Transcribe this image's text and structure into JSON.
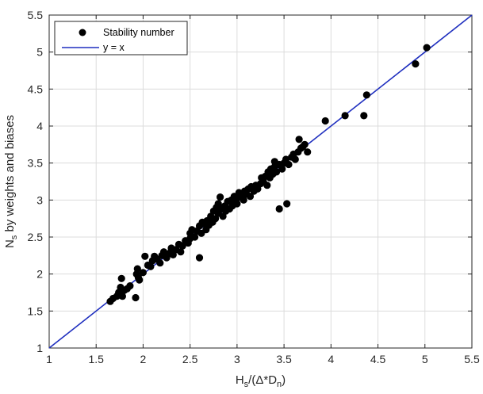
{
  "chart_data": {
    "type": "scatter",
    "xlim": [
      1,
      5.5
    ],
    "ylim": [
      1,
      5.5
    ],
    "x_ticks": [
      1,
      1.5,
      2,
      2.5,
      3,
      3.5,
      4,
      4.5,
      5,
      5.5
    ],
    "y_ticks": [
      1,
      1.5,
      2,
      2.5,
      3,
      3.5,
      4,
      4.5,
      5,
      5.5
    ],
    "x_tick_labels": [
      "1",
      "1.5",
      "2",
      "2.5",
      "3",
      "3.5",
      "4",
      "4.5",
      "5",
      "5.5"
    ],
    "y_tick_labels": [
      "1",
      "1.5",
      "2",
      "2.5",
      "3",
      "3.5",
      "4",
      "4.5",
      "5",
      "5.5"
    ],
    "xlabel": {
      "main": "H",
      "sub": "s",
      "mid": "/(Δ*D",
      "sub2": "n",
      "end": ")"
    },
    "ylabel": {
      "main": "N",
      "sub": "s",
      "rest": " by weights and biases"
    },
    "grid": true,
    "legend_position": "top-left",
    "series": [
      {
        "name": "Stability number",
        "marker": "filled-circle",
        "color": "#000000",
        "points": [
          [
            1.65,
            1.63
          ],
          [
            1.68,
            1.67
          ],
          [
            1.72,
            1.7
          ],
          [
            1.74,
            1.75
          ],
          [
            1.76,
            1.82
          ],
          [
            1.77,
            1.94
          ],
          [
            1.78,
            1.7
          ],
          [
            1.8,
            1.78
          ],
          [
            1.83,
            1.8
          ],
          [
            1.86,
            1.84
          ],
          [
            1.92,
            1.68
          ],
          [
            1.93,
            2.0
          ],
          [
            1.94,
            2.07
          ],
          [
            1.95,
            1.95
          ],
          [
            1.96,
            1.92
          ],
          [
            2.0,
            2.02
          ],
          [
            2.02,
            2.24
          ],
          [
            2.05,
            2.12
          ],
          [
            2.08,
            2.1
          ],
          [
            2.1,
            2.18
          ],
          [
            2.12,
            2.24
          ],
          [
            2.15,
            2.2
          ],
          [
            2.18,
            2.15
          ],
          [
            2.2,
            2.25
          ],
          [
            2.22,
            2.3
          ],
          [
            2.25,
            2.22
          ],
          [
            2.28,
            2.28
          ],
          [
            2.3,
            2.35
          ],
          [
            2.32,
            2.26
          ],
          [
            2.35,
            2.33
          ],
          [
            2.38,
            2.4
          ],
          [
            2.4,
            2.3
          ],
          [
            2.42,
            2.38
          ],
          [
            2.45,
            2.45
          ],
          [
            2.48,
            2.42
          ],
          [
            2.5,
            2.55
          ],
          [
            2.5,
            2.48
          ],
          [
            2.52,
            2.6
          ],
          [
            2.55,
            2.5
          ],
          [
            2.57,
            2.58
          ],
          [
            2.6,
            2.22
          ],
          [
            2.6,
            2.65
          ],
          [
            2.62,
            2.55
          ],
          [
            2.63,
            2.7
          ],
          [
            2.65,
            2.68
          ],
          [
            2.67,
            2.6
          ],
          [
            2.68,
            2.72
          ],
          [
            2.7,
            2.66
          ],
          [
            2.72,
            2.78
          ],
          [
            2.74,
            2.7
          ],
          [
            2.75,
            2.85
          ],
          [
            2.77,
            2.75
          ],
          [
            2.78,
            2.9
          ],
          [
            2.8,
            2.95
          ],
          [
            2.8,
            2.82
          ],
          [
            2.82,
            3.04
          ],
          [
            2.83,
            2.88
          ],
          [
            2.85,
            2.78
          ],
          [
            2.87,
            2.92
          ],
          [
            2.88,
            2.85
          ],
          [
            2.9,
            2.98
          ],
          [
            2.92,
            2.88
          ],
          [
            2.94,
            3.0
          ],
          [
            2.95,
            2.92
          ],
          [
            2.97,
            3.05
          ],
          [
            3.0,
            3.02
          ],
          [
            3.0,
            2.95
          ],
          [
            3.02,
            3.1
          ],
          [
            3.05,
            3.05
          ],
          [
            3.07,
            3.0
          ],
          [
            3.08,
            3.12
          ],
          [
            3.1,
            3.08
          ],
          [
            3.12,
            3.15
          ],
          [
            3.14,
            3.05
          ],
          [
            3.15,
            3.18
          ],
          [
            3.18,
            3.12
          ],
          [
            3.2,
            3.2
          ],
          [
            3.22,
            3.15
          ],
          [
            3.25,
            3.22
          ],
          [
            3.26,
            3.3
          ],
          [
            3.28,
            3.25
          ],
          [
            3.3,
            3.32
          ],
          [
            3.32,
            3.2
          ],
          [
            3.33,
            3.38
          ],
          [
            3.35,
            3.3
          ],
          [
            3.36,
            3.42
          ],
          [
            3.38,
            3.35
          ],
          [
            3.4,
            3.45
          ],
          [
            3.4,
            3.52
          ],
          [
            3.42,
            3.38
          ],
          [
            3.45,
            3.48
          ],
          [
            3.45,
            2.88
          ],
          [
            3.48,
            3.42
          ],
          [
            3.5,
            3.5
          ],
          [
            3.52,
            3.55
          ],
          [
            3.53,
            2.95
          ],
          [
            3.55,
            3.48
          ],
          [
            3.58,
            3.58
          ],
          [
            3.6,
            3.62
          ],
          [
            3.62,
            3.55
          ],
          [
            3.65,
            3.65
          ],
          [
            3.66,
            3.82
          ],
          [
            3.68,
            3.7
          ],
          [
            3.7,
            3.72
          ],
          [
            3.72,
            3.75
          ],
          [
            3.75,
            3.65
          ],
          [
            3.94,
            4.07
          ],
          [
            4.15,
            4.14
          ],
          [
            4.35,
            4.14
          ],
          [
            4.38,
            4.42
          ],
          [
            4.9,
            4.84
          ],
          [
            5.02,
            5.06
          ]
        ]
      },
      {
        "name": "y = x",
        "marker": "line",
        "color": "#1f2fbf",
        "points": [
          [
            1,
            1
          ],
          [
            5.5,
            5.5
          ]
        ]
      }
    ]
  }
}
